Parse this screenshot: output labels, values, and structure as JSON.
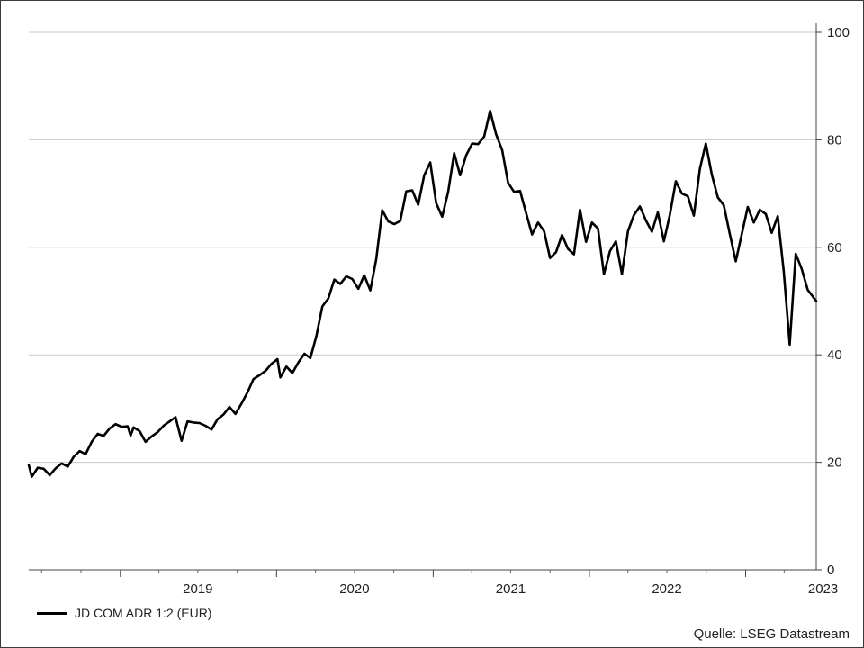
{
  "chart_data": {
    "type": "line",
    "title": "",
    "xlabel": "",
    "ylabel": "",
    "ylim": [
      0,
      100
    ],
    "y_ticks": [
      0,
      20,
      40,
      60,
      80,
      100
    ],
    "y_axis_side": "right",
    "grid": "horizontal",
    "x_range": [
      "2018-06-01",
      "2023-06-15"
    ],
    "x_tick_labels": [
      {
        "label": "2019",
        "date": "2019-07-01"
      },
      {
        "label": "2020",
        "date": "2020-07-01"
      },
      {
        "label": "2021",
        "date": "2021-07-01"
      },
      {
        "label": "2022",
        "date": "2022-07-01"
      },
      {
        "label": "2023",
        "date": "2023-07-01"
      }
    ],
    "x_year_boundaries": [
      "2019-01-01",
      "2020-01-01",
      "2021-01-01",
      "2022-01-01",
      "2023-01-01"
    ],
    "legend_position": "bottom-left",
    "series": [
      {
        "name": "JD COM ADR 1:2 (EUR)",
        "color": "#000000",
        "points": [
          [
            "2018-06-01",
            19.5
          ],
          [
            "2018-06-08",
            17.3
          ],
          [
            "2018-06-22",
            19.0
          ],
          [
            "2018-07-06",
            18.8
          ],
          [
            "2018-07-20",
            17.6
          ],
          [
            "2018-08-03",
            18.9
          ],
          [
            "2018-08-17",
            19.8
          ],
          [
            "2018-08-31",
            19.2
          ],
          [
            "2018-09-14",
            21.0
          ],
          [
            "2018-09-28",
            22.1
          ],
          [
            "2018-10-12",
            21.5
          ],
          [
            "2018-10-26",
            23.8
          ],
          [
            "2018-11-09",
            25.3
          ],
          [
            "2018-11-23",
            24.9
          ],
          [
            "2018-12-07",
            26.3
          ],
          [
            "2018-12-21",
            27.1
          ],
          [
            "2019-01-04",
            26.6
          ],
          [
            "2019-01-18",
            26.7
          ],
          [
            "2019-01-25",
            25.0
          ],
          [
            "2019-02-01",
            26.5
          ],
          [
            "2019-02-15",
            25.8
          ],
          [
            "2019-03-01",
            23.8
          ],
          [
            "2019-03-15",
            24.8
          ],
          [
            "2019-03-29",
            25.6
          ],
          [
            "2019-04-12",
            26.8
          ],
          [
            "2019-04-26",
            27.6
          ],
          [
            "2019-05-10",
            28.4
          ],
          [
            "2019-05-24",
            24.0
          ],
          [
            "2019-06-07",
            27.6
          ],
          [
            "2019-06-21",
            27.4
          ],
          [
            "2019-07-05",
            27.3
          ],
          [
            "2019-07-19",
            26.8
          ],
          [
            "2019-08-02",
            26.1
          ],
          [
            "2019-08-16",
            28.0
          ],
          [
            "2019-08-30",
            28.9
          ],
          [
            "2019-09-13",
            30.3
          ],
          [
            "2019-09-27",
            29.0
          ],
          [
            "2019-10-11",
            30.9
          ],
          [
            "2019-10-25",
            33.0
          ],
          [
            "2019-11-08",
            35.5
          ],
          [
            "2019-11-22",
            36.2
          ],
          [
            "2019-12-06",
            37.0
          ],
          [
            "2019-12-20",
            38.3
          ],
          [
            "2020-01-03",
            39.2
          ],
          [
            "2020-01-10",
            35.8
          ],
          [
            "2020-01-24",
            37.8
          ],
          [
            "2020-02-07",
            36.6
          ],
          [
            "2020-02-21",
            38.6
          ],
          [
            "2020-03-06",
            40.2
          ],
          [
            "2020-03-20",
            39.4
          ],
          [
            "2020-04-03",
            43.5
          ],
          [
            "2020-04-17",
            49.0
          ],
          [
            "2020-05-01",
            50.5
          ],
          [
            "2020-05-15",
            54.0
          ],
          [
            "2020-05-29",
            53.2
          ],
          [
            "2020-06-12",
            54.6
          ],
          [
            "2020-06-26",
            54.1
          ],
          [
            "2020-07-10",
            52.3
          ],
          [
            "2020-07-24",
            54.8
          ],
          [
            "2020-08-07",
            52.0
          ],
          [
            "2020-08-21",
            57.8
          ],
          [
            "2020-09-04",
            66.9
          ],
          [
            "2020-09-18",
            64.8
          ],
          [
            "2020-10-02",
            64.3
          ],
          [
            "2020-10-16",
            64.9
          ],
          [
            "2020-10-30",
            70.4
          ],
          [
            "2020-11-13",
            70.6
          ],
          [
            "2020-11-27",
            67.9
          ],
          [
            "2020-12-11",
            73.4
          ],
          [
            "2020-12-25",
            75.8
          ],
          [
            "2021-01-08",
            68.2
          ],
          [
            "2021-01-22",
            65.7
          ],
          [
            "2021-02-05",
            70.3
          ],
          [
            "2021-02-19",
            77.5
          ],
          [
            "2021-03-05",
            73.4
          ],
          [
            "2021-03-19",
            77.1
          ],
          [
            "2021-04-02",
            79.3
          ],
          [
            "2021-04-16",
            79.2
          ],
          [
            "2021-04-30",
            80.6
          ],
          [
            "2021-05-14",
            85.4
          ],
          [
            "2021-05-28",
            81.0
          ],
          [
            "2021-06-11",
            78.1
          ],
          [
            "2021-06-25",
            72.0
          ],
          [
            "2021-07-09",
            70.3
          ],
          [
            "2021-07-23",
            70.5
          ],
          [
            "2021-08-06",
            66.4
          ],
          [
            "2021-08-20",
            62.4
          ],
          [
            "2021-09-03",
            64.6
          ],
          [
            "2021-09-17",
            63.0
          ],
          [
            "2021-10-01",
            58.0
          ],
          [
            "2021-10-15",
            59.1
          ],
          [
            "2021-10-29",
            62.3
          ],
          [
            "2021-11-12",
            59.7
          ],
          [
            "2021-11-26",
            58.7
          ],
          [
            "2021-12-10",
            67.0
          ],
          [
            "2021-12-24",
            61.0
          ],
          [
            "2022-01-07",
            64.6
          ],
          [
            "2022-01-21",
            63.5
          ],
          [
            "2022-02-04",
            55.0
          ],
          [
            "2022-02-18",
            59.3
          ],
          [
            "2022-03-04",
            61.1
          ],
          [
            "2022-03-18",
            55.0
          ],
          [
            "2022-04-01",
            63.0
          ],
          [
            "2022-04-15",
            66.0
          ],
          [
            "2022-04-29",
            67.6
          ],
          [
            "2022-05-13",
            65.0
          ],
          [
            "2022-05-27",
            62.9
          ],
          [
            "2022-06-10",
            66.5
          ],
          [
            "2022-06-24",
            61.1
          ],
          [
            "2022-07-08",
            66.1
          ],
          [
            "2022-07-22",
            72.3
          ],
          [
            "2022-08-05",
            70.0
          ],
          [
            "2022-08-19",
            69.5
          ],
          [
            "2022-09-02",
            65.9
          ],
          [
            "2022-09-16",
            74.6
          ],
          [
            "2022-09-30",
            79.3
          ],
          [
            "2022-10-14",
            73.5
          ],
          [
            "2022-10-28",
            69.3
          ],
          [
            "2022-11-11",
            67.8
          ],
          [
            "2022-11-25",
            62.5
          ],
          [
            "2022-12-09",
            57.4
          ],
          [
            "2023-01-06",
            67.5
          ],
          [
            "2023-01-20",
            64.6
          ],
          [
            "2023-02-03",
            67.0
          ],
          [
            "2023-02-17",
            66.2
          ],
          [
            "2023-03-03",
            62.7
          ],
          [
            "2023-03-17",
            65.8
          ],
          [
            "2023-03-31",
            55.5
          ],
          [
            "2023-04-14",
            41.9
          ],
          [
            "2023-04-28",
            58.8
          ],
          [
            "2023-05-12",
            56.0
          ],
          [
            "2023-05-26",
            52.1
          ],
          [
            "2023-06-15",
            50.0
          ]
        ]
      }
    ]
  },
  "source_label": "Quelle: LSEG Datastream"
}
